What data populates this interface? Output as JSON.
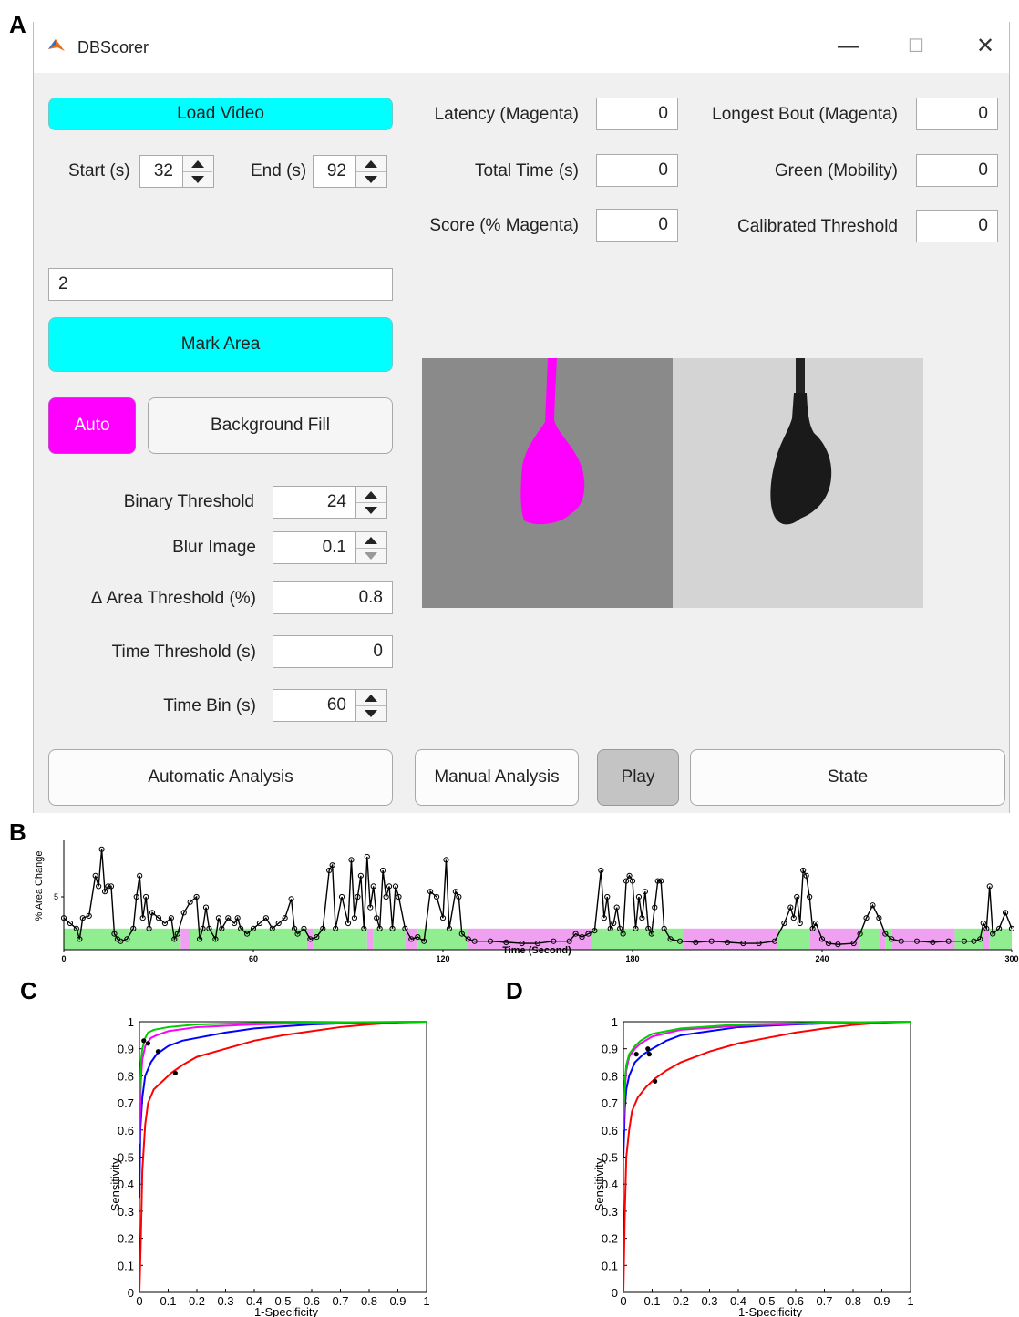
{
  "panel_letters": {
    "a": "A",
    "b": "B",
    "c": "C",
    "d": "D"
  },
  "window": {
    "title": "DBScorer",
    "icon": "matlab-icon",
    "controls": {
      "minimize": "—",
      "maximize": "☐",
      "close": "✕"
    }
  },
  "left": {
    "load_video": "Load Video",
    "start_label": "Start (s)",
    "start_value": "32",
    "end_label": "End (s)",
    "end_value": "92",
    "area_field_value": "2",
    "mark_area": "Mark Area",
    "auto": "Auto",
    "background_fill": "Background Fill",
    "params": [
      {
        "label": "Binary Threshold",
        "value": "24",
        "spinner": true
      },
      {
        "label": "Blur Image",
        "value": "0.1",
        "spinner": true
      },
      {
        "label": "Δ Area Threshold (%)",
        "value": "0.8",
        "spinner": false
      },
      {
        "label": "Time Threshold (s)",
        "value": "0",
        "spinner": false
      },
      {
        "label": "Time Bin (s)",
        "value": "60",
        "spinner": true
      }
    ]
  },
  "stats": {
    "latency_label": "Latency (Magenta)",
    "latency_value": "0",
    "longest_bout_label": "Longest Bout (Magenta)",
    "longest_bout_value": "0",
    "total_time_label": "Total Time (s)",
    "total_time_value": "0",
    "green_label": "Green (Mobility)",
    "green_value": "0",
    "score_label": "Score (% Magenta)",
    "score_value": "0",
    "calibrated_label": "Calibrated Threshold",
    "calibrated_value": "0"
  },
  "bottom": {
    "automatic": "Automatic Analysis",
    "manual": "Manual Analysis",
    "play": "Play",
    "state": "State"
  },
  "colors": {
    "cyan": "#00ffff",
    "magenta": "#ff00ff",
    "green_band": "#90ee90",
    "magenta_band": "#f0a0f0"
  },
  "chart_data": [
    {
      "type": "line",
      "ylabel": "% Area Change",
      "xlabel": "Time (Second)",
      "xlim": [
        0,
        300
      ],
      "ylim": [
        0,
        10
      ],
      "xticks": [
        0,
        60,
        120,
        180,
        240,
        300
      ],
      "yticks": [
        5
      ],
      "band_height": 2,
      "bands": [
        {
          "start": 0,
          "end": 37,
          "state": "green"
        },
        {
          "start": 37,
          "end": 40,
          "state": "magenta"
        },
        {
          "start": 40,
          "end": 77,
          "state": "green"
        },
        {
          "start": 77,
          "end": 79,
          "state": "magenta"
        },
        {
          "start": 79,
          "end": 96,
          "state": "green"
        },
        {
          "start": 96,
          "end": 98,
          "state": "magenta"
        },
        {
          "start": 98,
          "end": 108,
          "state": "green"
        },
        {
          "start": 108,
          "end": 112,
          "state": "magenta"
        },
        {
          "start": 112,
          "end": 128,
          "state": "green"
        },
        {
          "start": 128,
          "end": 167,
          "state": "magenta"
        },
        {
          "start": 167,
          "end": 196,
          "state": "green"
        },
        {
          "start": 196,
          "end": 226,
          "state": "magenta"
        },
        {
          "start": 226,
          "end": 236,
          "state": "green"
        },
        {
          "start": 236,
          "end": 252,
          "state": "magenta"
        },
        {
          "start": 252,
          "end": 258,
          "state": "green"
        },
        {
          "start": 258,
          "end": 260,
          "state": "magenta"
        },
        {
          "start": 260,
          "end": 262,
          "state": "green"
        },
        {
          "start": 262,
          "end": 282,
          "state": "magenta"
        },
        {
          "start": 282,
          "end": 291,
          "state": "green"
        },
        {
          "start": 291,
          "end": 293,
          "state": "magenta"
        },
        {
          "start": 293,
          "end": 300,
          "state": "green"
        }
      ],
      "series": [
        {
          "x": [
            0,
            2,
            4,
            5,
            6,
            8,
            10,
            11,
            12,
            13,
            14,
            15,
            16,
            17,
            18,
            20,
            22,
            23,
            24,
            25,
            26,
            27,
            28,
            30,
            32,
            34,
            35,
            36,
            38,
            40,
            42,
            43,
            44,
            45,
            46,
            48,
            49,
            50,
            52,
            54,
            55,
            56,
            58,
            60,
            62,
            64,
            66,
            68,
            70,
            72,
            73,
            74,
            76,
            78,
            80,
            82,
            84,
            85,
            86,
            88,
            90,
            91,
            92,
            93,
            94,
            95,
            96,
            97,
            98,
            99,
            100,
            101,
            102,
            103,
            104,
            105,
            106,
            108,
            110,
            112,
            114,
            116,
            118,
            120,
            121,
            122,
            124,
            125,
            126,
            128,
            130,
            135,
            140,
            145,
            150,
            155,
            160,
            162,
            164,
            166,
            168,
            170,
            171,
            172,
            173,
            174,
            175,
            176,
            177,
            178,
            179,
            180,
            181,
            182,
            183,
            184,
            185,
            186,
            187,
            188,
            189,
            190,
            192,
            195,
            200,
            205,
            210,
            215,
            220,
            225,
            228,
            230,
            231,
            232,
            233,
            234,
            235,
            236,
            237,
            238,
            240,
            242,
            245,
            250,
            252,
            254,
            256,
            258,
            260,
            262,
            265,
            270,
            275,
            280,
            285,
            288,
            290,
            291,
            292,
            293,
            294,
            296,
            298,
            300
          ],
          "y": [
            3,
            2.5,
            2,
            1,
            3,
            3.2,
            7,
            6,
            9.5,
            5.5,
            6,
            6,
            1.5,
            1,
            0.8,
            1,
            2,
            5,
            7,
            3,
            5,
            2,
            3.5,
            3,
            2.5,
            3,
            1,
            1.5,
            3.5,
            4.5,
            5,
            1,
            2,
            4,
            2,
            1,
            3,
            2,
            3,
            2.5,
            3,
            2,
            1.5,
            2,
            2.5,
            3,
            2,
            2.5,
            3,
            4.8,
            2,
            1.5,
            2,
            1,
            1.2,
            2,
            7.5,
            8,
            2,
            5,
            2.5,
            8.5,
            3,
            5,
            7,
            2,
            8.8,
            4,
            6,
            3,
            2,
            7.5,
            5,
            6,
            2,
            6,
            5,
            2,
            1,
            1.2,
            0.8,
            5.5,
            5,
            3,
            8.5,
            2,
            5.5,
            5,
            1.5,
            1,
            0.8,
            0.8,
            0.7,
            0.6,
            0.6,
            0.8,
            0.8,
            1.5,
            1.2,
            1.5,
            1.8,
            7.5,
            3,
            5,
            2,
            2.5,
            4,
            2,
            1.5,
            6.5,
            7,
            6.5,
            2,
            5,
            3,
            5.5,
            2,
            1.5,
            4,
            6.5,
            6.5,
            2,
            1,
            0.8,
            0.7,
            0.8,
            0.7,
            0.6,
            0.6,
            0.8,
            2.5,
            4,
            3,
            5,
            2.5,
            7.5,
            7,
            5,
            2,
            2.5,
            1,
            0.6,
            0.5,
            0.6,
            1.5,
            3,
            4.2,
            3,
            1.5,
            1,
            0.8,
            0.8,
            0.7,
            0.8,
            0.8,
            0.8,
            1,
            2.5,
            2,
            6,
            1.5,
            2,
            3.5,
            2
          ]
        }
      ]
    },
    {
      "type": "line",
      "xlabel": "1-Specificity",
      "ylabel": "Sensitivity",
      "xlim": [
        0,
        1
      ],
      "ylim": [
        0,
        1
      ],
      "xticks": [
        "0",
        "0.1",
        "0.2",
        "0.3",
        "0.4",
        "0.5",
        "0.6",
        "0.7",
        "0.8",
        "0.9",
        "1"
      ],
      "yticks": [
        "0",
        "0.1",
        "0.2",
        "0.3",
        "0.4",
        "0.5",
        "0.6",
        "0.7",
        "0.8",
        "0.9",
        "1"
      ],
      "series": [
        {
          "color": "#00cc00",
          "x": [
            0,
            0.005,
            0.01,
            0.02,
            0.03,
            0.05,
            0.1,
            0.2,
            0.4,
            0.7,
            1
          ],
          "y": [
            0.7,
            0.85,
            0.9,
            0.94,
            0.96,
            0.97,
            0.98,
            0.99,
            0.995,
            0.998,
            1
          ]
        },
        {
          "color": "#ff00ff",
          "x": [
            0,
            0.005,
            0.01,
            0.02,
            0.04,
            0.06,
            0.1,
            0.2,
            0.4,
            0.7,
            1
          ],
          "y": [
            0.55,
            0.78,
            0.86,
            0.91,
            0.94,
            0.95,
            0.965,
            0.98,
            0.99,
            0.997,
            1
          ]
        },
        {
          "color": "#0000ff",
          "x": [
            0,
            0.003,
            0.01,
            0.02,
            0.04,
            0.06,
            0.1,
            0.15,
            0.2,
            0.3,
            0.4,
            0.6,
            0.8,
            1
          ],
          "y": [
            0.35,
            0.6,
            0.72,
            0.8,
            0.85,
            0.88,
            0.91,
            0.93,
            0.94,
            0.96,
            0.975,
            0.99,
            0.997,
            1
          ]
        },
        {
          "color": "#ff0000",
          "x": [
            0,
            0.005,
            0.01,
            0.02,
            0.03,
            0.05,
            0.08,
            0.11,
            0.15,
            0.2,
            0.3,
            0.4,
            0.5,
            0.6,
            0.7,
            0.8,
            0.9,
            1
          ],
          "y": [
            0,
            0.2,
            0.45,
            0.62,
            0.7,
            0.75,
            0.78,
            0.81,
            0.84,
            0.87,
            0.9,
            0.93,
            0.95,
            0.965,
            0.98,
            0.99,
            0.997,
            1
          ]
        }
      ],
      "markers": [
        {
          "x": 0.015,
          "y": 0.93
        },
        {
          "x": 0.03,
          "y": 0.92
        },
        {
          "x": 0.065,
          "y": 0.89
        },
        {
          "x": 0.125,
          "y": 0.81
        }
      ]
    },
    {
      "type": "line",
      "xlabel": "1-Specificity",
      "ylabel": "Sensitivity",
      "xlim": [
        0,
        1
      ],
      "ylim": [
        0,
        1
      ],
      "xticks": [
        "0",
        "0.1",
        "0.2",
        "0.3",
        "0.4",
        "0.5",
        "0.6",
        "0.7",
        "0.8",
        "0.9",
        "1"
      ],
      "yticks": [
        "0",
        "0.1",
        "0.2",
        "0.3",
        "0.4",
        "0.5",
        "0.6",
        "0.7",
        "0.8",
        "0.9",
        "1"
      ],
      "series": [
        {
          "color": "#00cc00",
          "x": [
            0,
            0.005,
            0.01,
            0.02,
            0.04,
            0.06,
            0.1,
            0.2,
            0.4,
            0.7,
            1
          ],
          "y": [
            0.65,
            0.78,
            0.84,
            0.88,
            0.91,
            0.93,
            0.955,
            0.975,
            0.99,
            0.997,
            1
          ]
        },
        {
          "color": "#ff00ff",
          "x": [
            0,
            0.005,
            0.01,
            0.02,
            0.04,
            0.06,
            0.1,
            0.2,
            0.4,
            0.7,
            1
          ],
          "y": [
            0.6,
            0.75,
            0.82,
            0.87,
            0.9,
            0.92,
            0.945,
            0.97,
            0.985,
            0.996,
            1
          ]
        },
        {
          "color": "#0000ff",
          "x": [
            0,
            0.005,
            0.01,
            0.02,
            0.04,
            0.07,
            0.1,
            0.15,
            0.2,
            0.3,
            0.4,
            0.6,
            0.8,
            1
          ],
          "y": [
            0.5,
            0.68,
            0.75,
            0.8,
            0.85,
            0.88,
            0.9,
            0.93,
            0.95,
            0.965,
            0.98,
            0.99,
            0.997,
            1
          ]
        },
        {
          "color": "#ff0000",
          "x": [
            0,
            0.005,
            0.01,
            0.02,
            0.03,
            0.05,
            0.08,
            0.11,
            0.15,
            0.2,
            0.3,
            0.4,
            0.5,
            0.6,
            0.7,
            0.8,
            0.9,
            1
          ],
          "y": [
            0,
            0.3,
            0.5,
            0.6,
            0.67,
            0.72,
            0.76,
            0.79,
            0.82,
            0.85,
            0.89,
            0.92,
            0.94,
            0.96,
            0.975,
            0.988,
            0.996,
            1
          ]
        }
      ],
      "markers": [
        {
          "x": 0.045,
          "y": 0.88
        },
        {
          "x": 0.085,
          "y": 0.9
        },
        {
          "x": 0.09,
          "y": 0.88
        },
        {
          "x": 0.11,
          "y": 0.78
        }
      ]
    }
  ]
}
